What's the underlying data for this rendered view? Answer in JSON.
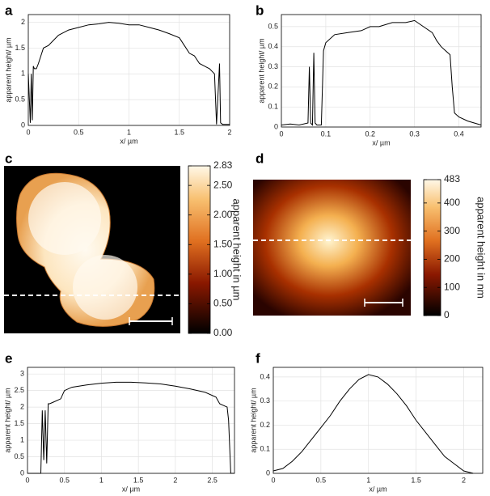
{
  "chart_data": [
    {
      "type": "line",
      "label": "a",
      "xlabel": "x/ µm",
      "ylabel": "apparent height/ µm",
      "xlim": [
        0,
        2
      ],
      "xticks": [
        0,
        0.5,
        1,
        1.5,
        2
      ],
      "ylim": [
        0,
        2.15
      ],
      "yticks": [
        0,
        0.5,
        1,
        1.5,
        2
      ],
      "grid": true,
      "color": "#000000",
      "x": [
        0,
        0.02,
        0.03,
        0.04,
        0.05,
        0.06,
        0.08,
        0.1,
        0.15,
        0.2,
        0.25,
        0.3,
        0.4,
        0.5,
        0.6,
        0.7,
        0.8,
        0.9,
        1.0,
        1.1,
        1.2,
        1.3,
        1.4,
        1.5,
        1.55,
        1.6,
        1.65,
        1.7,
        1.75,
        1.8,
        1.85,
        1.87,
        1.9,
        1.91,
        1.93,
        1.95,
        2.0
      ],
      "values": [
        1.0,
        0.05,
        1.0,
        0.1,
        1.15,
        1.1,
        1.1,
        1.2,
        1.5,
        1.55,
        1.65,
        1.75,
        1.85,
        1.9,
        1.95,
        1.97,
        2.0,
        1.98,
        1.95,
        1.95,
        1.9,
        1.85,
        1.78,
        1.7,
        1.55,
        1.4,
        1.35,
        1.2,
        1.15,
        1.1,
        1.0,
        0.02,
        1.2,
        0.05,
        0.02,
        0.02,
        0.02
      ]
    },
    {
      "type": "line",
      "label": "b",
      "xlabel": "x/ µm",
      "ylabel": "apparent height/ µm",
      "xlim": [
        0,
        0.45
      ],
      "xticks": [
        0,
        0.1,
        0.2,
        0.3,
        0.4
      ],
      "ylim": [
        0,
        0.56
      ],
      "yticks": [
        0,
        0.1,
        0.2,
        0.3,
        0.4,
        0.5
      ],
      "grid": true,
      "color": "#000000",
      "x": [
        0,
        0.02,
        0.04,
        0.06,
        0.063,
        0.066,
        0.07,
        0.073,
        0.076,
        0.08,
        0.09,
        0.095,
        0.1,
        0.12,
        0.15,
        0.18,
        0.2,
        0.22,
        0.25,
        0.28,
        0.3,
        0.32,
        0.34,
        0.35,
        0.36,
        0.37,
        0.38,
        0.385,
        0.39,
        0.4,
        0.42,
        0.45
      ],
      "values": [
        0.01,
        0.015,
        0.01,
        0.02,
        0.3,
        0.02,
        0.01,
        0.37,
        0.02,
        0.01,
        0.01,
        0.38,
        0.42,
        0.46,
        0.47,
        0.48,
        0.5,
        0.5,
        0.52,
        0.52,
        0.53,
        0.5,
        0.47,
        0.43,
        0.4,
        0.38,
        0.36,
        0.2,
        0.07,
        0.05,
        0.03,
        0.01
      ]
    },
    {
      "type": "image",
      "label": "c",
      "clabel": "apparent height in µm",
      "clim": [
        0,
        2.83
      ],
      "cticks": [
        {
          "value": 0,
          "label": "0.00"
        },
        {
          "value": 0.5,
          "label": "0.50"
        },
        {
          "value": 1,
          "label": "1.00"
        },
        {
          "value": 1.5,
          "label": "1.50"
        },
        {
          "value": 2,
          "label": "2.00"
        },
        {
          "value": 2.5,
          "label": "2.50"
        },
        2.83
      ]
    },
    {
      "type": "image",
      "label": "d",
      "clabel": "apparent height in nm",
      "clim": [
        0,
        483
      ],
      "cticks": [
        0,
        100,
        200,
        300,
        400,
        483
      ]
    },
    {
      "type": "line",
      "label": "e",
      "xlabel": "x/ µm",
      "ylabel": "apparent height/ µm",
      "xlim": [
        0,
        2.8
      ],
      "xticks": [
        0,
        0.5,
        1,
        1.5,
        2,
        2.5
      ],
      "ylim": [
        0,
        3.2
      ],
      "yticks": [
        0,
        0.5,
        1,
        1.5,
        2,
        2.5,
        3
      ],
      "grid": true,
      "color": "#000000",
      "x": [
        0,
        0.18,
        0.2,
        0.22,
        0.24,
        0.26,
        0.28,
        0.3,
        0.35,
        0.45,
        0.5,
        0.6,
        0.8,
        1,
        1.2,
        1.4,
        1.6,
        1.8,
        2,
        2.2,
        2.4,
        2.55,
        2.6,
        2.65,
        2.7,
        2.72,
        2.75,
        2.8
      ],
      "values": [
        0,
        0,
        1.9,
        0.4,
        1.9,
        0.3,
        2.1,
        2.1,
        2.15,
        2.25,
        2.5,
        2.6,
        2.67,
        2.72,
        2.75,
        2.75,
        2.73,
        2.7,
        2.63,
        2.55,
        2.45,
        2.3,
        2.1,
        2.05,
        2.0,
        1.6,
        0,
        0
      ]
    },
    {
      "type": "line",
      "label": "f",
      "xlabel": "x/ µm",
      "ylabel": "apparent height/ µm",
      "xlim": [
        0,
        2.2
      ],
      "xticks": [
        0,
        0.5,
        1,
        1.5,
        2
      ],
      "ylim": [
        0,
        0.44
      ],
      "yticks": [
        0,
        0.1,
        0.2,
        0.3,
        0.4
      ],
      "grid": true,
      "color": "#000000",
      "x": [
        0,
        0.1,
        0.2,
        0.3,
        0.4,
        0.5,
        0.6,
        0.7,
        0.8,
        0.9,
        1.0,
        1.1,
        1.2,
        1.3,
        1.4,
        1.5,
        1.6,
        1.7,
        1.8,
        1.9,
        2.0,
        2.1
      ],
      "values": [
        0.01,
        0.02,
        0.05,
        0.09,
        0.14,
        0.19,
        0.24,
        0.3,
        0.35,
        0.39,
        0.41,
        0.4,
        0.37,
        0.33,
        0.28,
        0.22,
        0.17,
        0.12,
        0.07,
        0.04,
        0.01,
        0
      ]
    }
  ]
}
